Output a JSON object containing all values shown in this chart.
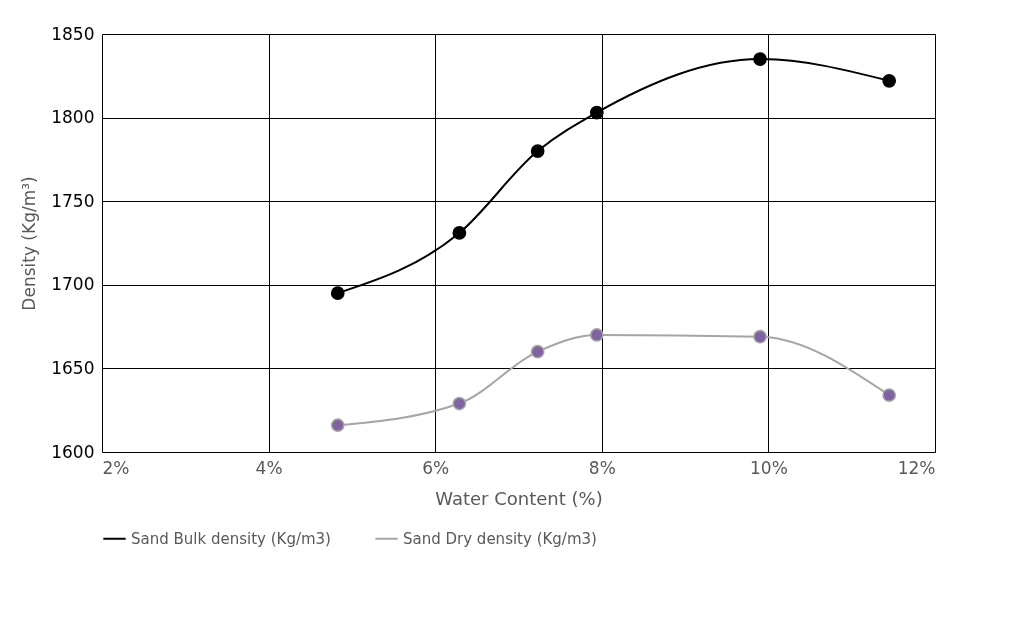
{
  "chart_data": {
    "type": "line",
    "xlabel": "Water Content (%)",
    "ylabel": "Density (Kg/m³)",
    "x": [
      4.83,
      6.29,
      7.23,
      7.94,
      9.9,
      11.45
    ],
    "series": [
      {
        "name": "Sand Bulk density (Kg/m3)",
        "color": "#000000",
        "values": [
          1695,
          1731,
          1780,
          1803,
          1835,
          1822
        ]
      },
      {
        "name": "Sand Dry density (Kg/m3)",
        "color": "#a5a5a5",
        "colors": [
          "#8064a2",
          "#8064a2",
          "#8064a2",
          "#8064a2",
          "#8064a2",
          "#8064a2"
        ],
        "values": [
          1616,
          1629,
          1660,
          1670,
          1669,
          1634
        ]
      }
    ],
    "xlim": [
      2,
      12
    ],
    "xticks": [
      {
        "value": 2,
        "label": "2%"
      },
      {
        "value": 4,
        "label": "4%"
      },
      {
        "value": 6,
        "label": "6%"
      },
      {
        "value": 8,
        "label": "8%"
      },
      {
        "value": 10,
        "label": "10%"
      },
      {
        "value": 12,
        "label": "12%"
      }
    ],
    "ylim": [
      1600,
      1850
    ],
    "yticks": [
      1600,
      1650,
      1700,
      1750,
      1800,
      1850
    ],
    "grid": true,
    "legend": "bottom",
    "marker": "circle",
    "line_style": "solid"
  }
}
